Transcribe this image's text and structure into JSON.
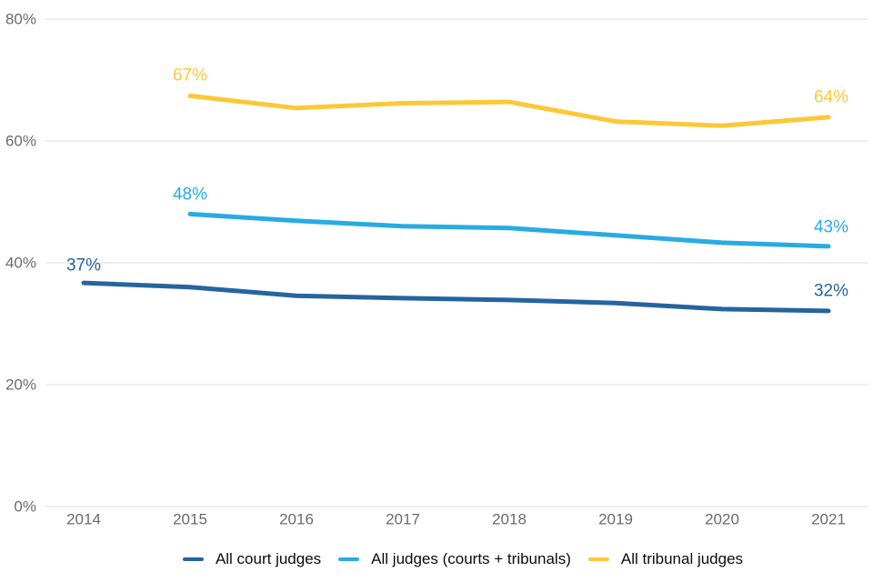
{
  "chart_data": {
    "type": "line",
    "title": "",
    "xlabel": "",
    "ylabel": "",
    "ylim": [
      0,
      80
    ],
    "y_gridlines": [
      0,
      20,
      40,
      60,
      80
    ],
    "y_tick_labels_top_to_bottom": [
      "80%",
      "60%",
      "40%",
      "20%",
      "0%"
    ],
    "x_tick_labels": [
      "2014",
      "2015",
      "2016",
      "2017",
      "2018",
      "2019",
      "2020",
      "2021"
    ],
    "grid": "horizontal-only",
    "legend_position": "bottom-center",
    "axis_text_color": "#6b6b6b",
    "gridline_color": "#dcdcdc",
    "legend_text_color": "#0b0c0c",
    "series": [
      {
        "name": "All court judges",
        "color": "#25649f",
        "x": [
          2014,
          2015,
          2016,
          2017,
          2018,
          2019,
          2020,
          2021
        ],
        "values": [
          36.7,
          36.0,
          34.6,
          34.2,
          33.9,
          33.4,
          32.4,
          32.1
        ],
        "point_labels": {
          "first": "37%",
          "last": "32%"
        }
      },
      {
        "name": "All judges (courts + tribunals)",
        "color": "#28abe2",
        "x": [
          2015,
          2016,
          2017,
          2018,
          2019,
          2020,
          2021
        ],
        "values": [
          48.0,
          46.9,
          46.0,
          45.7,
          44.5,
          43.3,
          42.7
        ],
        "point_labels": {
          "first": "48%",
          "last": "43%"
        }
      },
      {
        "name": "All tribunal judges",
        "color": "#fcc837",
        "x": [
          2015,
          2016,
          2017,
          2018,
          2019,
          2020,
          2021
        ],
        "values": [
          67.4,
          65.4,
          66.2,
          66.4,
          63.2,
          62.5,
          63.9
        ],
        "point_labels": {
          "first": "67%",
          "last": "64%"
        }
      }
    ]
  }
}
